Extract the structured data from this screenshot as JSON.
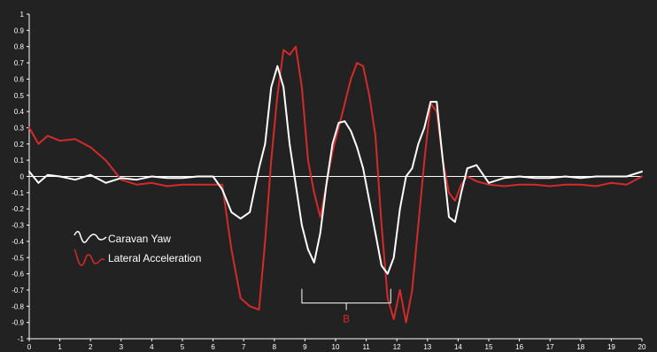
{
  "chart_data": {
    "type": "line",
    "title": "",
    "xlabel": "",
    "ylabel": "",
    "xlim": [
      0,
      20
    ],
    "ylim": [
      -1,
      1
    ],
    "grid": false,
    "background_color": "#222222",
    "x_ticks": [
      "0",
      "1",
      "2",
      "3",
      "4",
      "5",
      "6",
      "7",
      "8",
      "9",
      "10",
      "11",
      "12",
      "13",
      "14",
      "15",
      "16",
      "17",
      "18",
      "19",
      "20"
    ],
    "y_ticks": [
      "1",
      "0.9",
      "0.8",
      "0.7",
      "0.6",
      "0.5",
      "0.4",
      "0.3",
      "0.2",
      "0.1",
      "0",
      "-0.1",
      "-0.2",
      "-0.3",
      "-0.4",
      "-0.5",
      "-0.6",
      "-0.7",
      "-0.8",
      "-0.9",
      "-1"
    ],
    "legend_position": "left",
    "series": [
      {
        "name": "Caravan Yaw",
        "color": "#ffffff",
        "x": [
          0,
          0.3,
          0.6,
          1,
          1.5,
          2,
          2.5,
          3,
          3.5,
          4,
          4.5,
          5,
          5.5,
          6,
          6.3,
          6.6,
          6.9,
          7.2,
          7.5,
          7.7,
          7.9,
          8.1,
          8.3,
          8.5,
          8.7,
          8.9,
          9.1,
          9.3,
          9.5,
          9.7,
          9.9,
          10.1,
          10.3,
          10.5,
          10.7,
          10.9,
          11.1,
          11.3,
          11.5,
          11.7,
          11.9,
          12.1,
          12.3,
          12.5,
          12.7,
          12.9,
          13.1,
          13.3,
          13.5,
          13.7,
          13.9,
          14.1,
          14.3,
          14.6,
          15,
          15.5,
          16,
          16.5,
          17,
          17.5,
          18,
          18.5,
          19,
          19.5,
          20
        ],
        "values": [
          0.03,
          -0.04,
          0.01,
          0,
          -0.02,
          0.01,
          -0.04,
          -0.01,
          -0.02,
          0,
          -0.01,
          -0.01,
          0,
          0,
          -0.08,
          -0.22,
          -0.26,
          -0.22,
          0.05,
          0.2,
          0.55,
          0.68,
          0.55,
          0.2,
          -0.05,
          -0.3,
          -0.45,
          -0.53,
          -0.35,
          -0.05,
          0.2,
          0.33,
          0.34,
          0.28,
          0.18,
          0.05,
          -0.15,
          -0.35,
          -0.55,
          -0.6,
          -0.5,
          -0.2,
          0,
          0.05,
          0.2,
          0.3,
          0.46,
          0.46,
          0.1,
          -0.25,
          -0.28,
          -0.1,
          0.05,
          0.07,
          -0.04,
          -0.01,
          0,
          -0.01,
          -0.01,
          0,
          -0.01,
          0,
          0,
          0,
          0.03
        ]
      },
      {
        "name": "Lateral Acceleration",
        "color": "#d42a2a",
        "x": [
          0,
          0.3,
          0.6,
          1,
          1.5,
          2,
          2.5,
          3,
          3.5,
          4,
          4.5,
          5,
          5.5,
          6,
          6.3,
          6.6,
          6.9,
          7.2,
          7.5,
          7.7,
          7.9,
          8.1,
          8.3,
          8.5,
          8.7,
          8.9,
          9.1,
          9.3,
          9.5,
          9.7,
          9.9,
          10.1,
          10.3,
          10.5,
          10.7,
          10.9,
          11.1,
          11.3,
          11.5,
          11.7,
          11.9,
          12.1,
          12.3,
          12.5,
          12.7,
          12.9,
          13.1,
          13.3,
          13.5,
          13.7,
          13.9,
          14.1,
          14.3,
          14.6,
          15,
          15.5,
          16,
          16.5,
          17,
          17.5,
          18,
          18.5,
          19,
          19.5,
          20
        ],
        "values": [
          0.3,
          0.2,
          0.25,
          0.22,
          0.23,
          0.18,
          0.1,
          -0.02,
          -0.05,
          -0.04,
          -0.06,
          -0.05,
          -0.05,
          -0.05,
          -0.05,
          -0.45,
          -0.75,
          -0.8,
          -0.82,
          -0.4,
          0.1,
          0.5,
          0.78,
          0.75,
          0.8,
          0.55,
          0.1,
          -0.1,
          -0.25,
          -0.05,
          0.15,
          0.3,
          0.45,
          0.6,
          0.7,
          0.68,
          0.5,
          0.25,
          -0.3,
          -0.75,
          -0.88,
          -0.7,
          -0.9,
          -0.7,
          -0.3,
          0.1,
          0.45,
          0.4,
          0.1,
          -0.1,
          -0.15,
          -0.05,
          0,
          -0.03,
          -0.05,
          -0.06,
          -0.05,
          -0.05,
          -0.06,
          -0.05,
          -0.05,
          -0.06,
          -0.04,
          -0.05,
          0
        ]
      }
    ],
    "annotations": [
      {
        "type": "bracket",
        "x_start": 8.9,
        "x_end": 11.8,
        "y": -0.78,
        "label": "B",
        "color": "#d42a2a"
      }
    ]
  }
}
